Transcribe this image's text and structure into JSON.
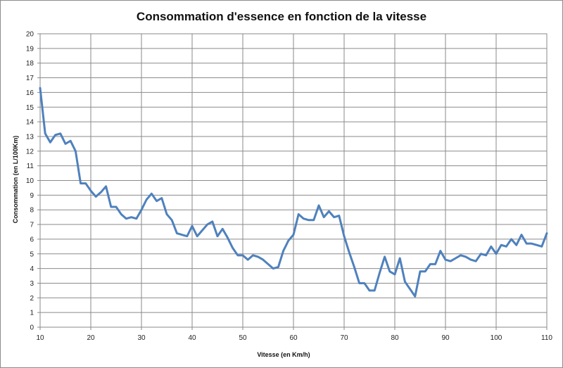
{
  "chart_data": {
    "type": "line",
    "title": "Consommation d'essence en fonction de la vitesse",
    "xlabel": "Vitesse (en Km/h)",
    "ylabel": "Consommation (en L/100Km)",
    "xlim": [
      10,
      110
    ],
    "ylim": [
      0,
      20
    ],
    "x_ticks": [
      10,
      20,
      30,
      40,
      50,
      60,
      70,
      80,
      90,
      100,
      110
    ],
    "y_ticks": [
      0,
      1,
      2,
      3,
      4,
      5,
      6,
      7,
      8,
      9,
      10,
      11,
      12,
      13,
      14,
      15,
      16,
      17,
      18,
      19,
      20
    ],
    "grid": true,
    "legend": "none",
    "line_color": "#4f81bd",
    "series": [
      {
        "x": [
          10,
          11,
          12,
          13,
          14,
          15,
          16,
          17,
          18,
          19,
          20,
          21,
          22,
          23,
          24,
          25,
          26,
          27,
          28,
          29,
          30,
          31,
          32,
          33,
          34,
          35,
          36,
          37,
          38,
          39,
          40,
          41,
          42,
          43,
          44,
          45,
          46,
          47,
          48,
          49,
          50,
          51,
          52,
          53,
          54,
          55,
          56,
          57,
          58,
          59,
          60,
          61,
          62,
          63,
          64,
          65,
          66,
          67,
          68,
          69,
          70,
          71,
          72,
          73,
          74,
          75,
          76,
          77,
          78,
          79,
          80,
          81,
          82,
          83,
          84,
          85,
          86,
          87,
          88,
          89,
          90,
          91,
          92,
          93,
          94,
          95,
          96,
          97,
          98,
          99,
          100,
          101,
          102,
          103,
          104,
          105,
          106,
          107,
          108,
          109,
          110
        ],
        "values": [
          16.3,
          13.2,
          12.6,
          13.1,
          13.2,
          12.5,
          12.7,
          12.0,
          9.8,
          9.8,
          9.3,
          8.9,
          9.2,
          9.6,
          8.2,
          8.2,
          7.7,
          7.4,
          7.5,
          7.4,
          8.0,
          8.7,
          9.1,
          8.6,
          8.8,
          7.7,
          7.3,
          6.4,
          6.3,
          6.2,
          6.9,
          6.2,
          6.6,
          7.0,
          7.2,
          6.2,
          6.7,
          6.1,
          5.4,
          4.9,
          4.9,
          4.6,
          4.9,
          4.8,
          4.6,
          4.3,
          4.0,
          4.1,
          5.2,
          5.9,
          6.3,
          7.7,
          7.4,
          7.3,
          7.3,
          8.3,
          7.5,
          7.9,
          7.5,
          7.6,
          6.2,
          5.1,
          4.1,
          3.0,
          3.0,
          2.5,
          2.5,
          3.7,
          4.8,
          3.8,
          3.6,
          4.7,
          3.1,
          2.6,
          2.1,
          3.8,
          3.8,
          4.3,
          4.3,
          5.2,
          4.6,
          4.5,
          4.7,
          4.9,
          4.8,
          4.6,
          4.5,
          5.0,
          4.9,
          5.5,
          5.0,
          5.6,
          5.5,
          6.0,
          5.6,
          6.3,
          5.7,
          5.7,
          5.6,
          5.5,
          6.4
        ]
      }
    ]
  }
}
